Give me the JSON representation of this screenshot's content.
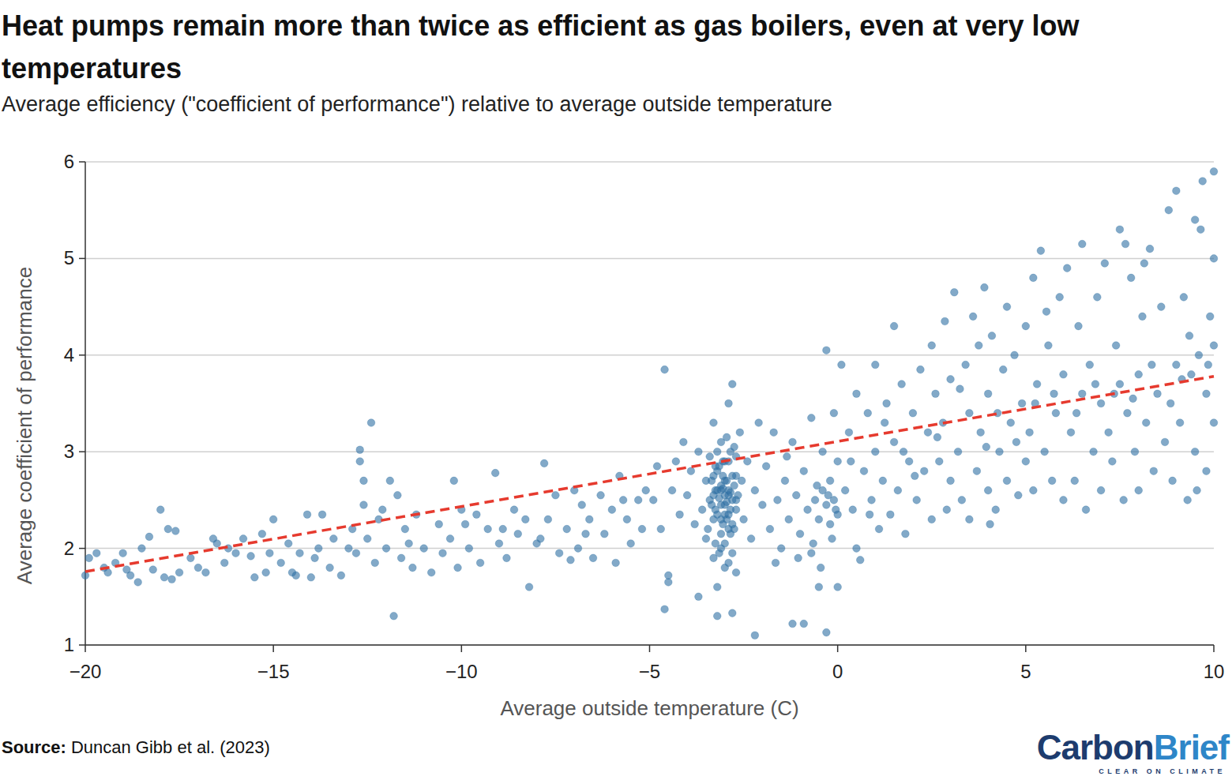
{
  "chart_data": {
    "type": "scatter",
    "title": "Heat pumps remain more than twice as efficient as gas boilers, even at very low temperatures",
    "subtitle": "Average efficiency (\"coefficient of performance\") relative to average outside temperature",
    "x_label": "Average outside temperature (C)",
    "y_label": "Average coefficient of performance",
    "source_label": "Source:",
    "source": "Duncan Gibb et al. (2023)",
    "brand": [
      "Carbon",
      "Brief"
    ],
    "tagline": "CLEAR ON CLIMATE",
    "xlim": [
      -20,
      10
    ],
    "xticks": [
      {
        "value": -20,
        "label": "−20"
      },
      {
        "value": -15,
        "label": "−15"
      },
      {
        "value": -10,
        "label": "−10"
      },
      {
        "value": -5,
        "label": "−5"
      },
      0,
      5,
      10
    ],
    "ylim": [
      1,
      6
    ],
    "yticks": [
      1,
      2,
      3,
      4,
      5,
      6
    ],
    "grid": true,
    "series": [
      {
        "type": "scatter",
        "color": "#2f6fa3",
        "marker": "circle",
        "x": [
          -20,
          -19.9,
          -19.7,
          -19.5,
          -19.2,
          -19,
          -18.8,
          -18.6,
          -18.5,
          -18.3,
          -18.2,
          -18,
          -17.9,
          -17.8,
          -17.6,
          -17.5,
          -17.2,
          -17,
          -16.8,
          -16.6,
          -16.5,
          -16.3,
          -16,
          -15.8,
          -15.5,
          -15.3,
          -15.2,
          -15,
          -15.1,
          -19.4,
          -18.9,
          -17.7,
          -16.2,
          -15.6,
          -14.8,
          -14.6,
          -14.5,
          -14.3,
          -14.1,
          -14,
          -13.8,
          -13.7,
          -13.5,
          -13.4,
          -13.2,
          -13,
          -12.9,
          -12.7,
          -12.7,
          -12.6,
          -12.6,
          -12.5,
          -12.4,
          -12.3,
          -12.2,
          -12,
          -11.9,
          -11.8,
          -11.7,
          -11.6,
          -11.5,
          -11.3,
          -11.2,
          -11,
          -10.8,
          -10.6,
          -10.5,
          -10.3,
          -10.2,
          -10.1,
          -10,
          -12.8,
          -13.9,
          -14.4,
          -11.4,
          -12.1,
          -9.8,
          -9.6,
          -9.5,
          -9.3,
          -9.1,
          -9,
          -8.8,
          -8.6,
          -8.5,
          -8.3,
          -8.2,
          -8,
          -7.8,
          -7.7,
          -7.5,
          -7.4,
          -7.2,
          -7,
          -6.9,
          -6.8,
          -6.6,
          -6.5,
          -6.3,
          -6.2,
          -6,
          -5.9,
          -5.8,
          -5.6,
          -5.5,
          -5.3,
          -5.2,
          -5.1,
          -9.9,
          -8.9,
          -7.9,
          -6.7,
          -5.7,
          -7.1,
          -4.9,
          -4.8,
          -4.7,
          -4.6,
          -4.6,
          -4.5,
          -4.5,
          -4.4,
          -4.3,
          -4.2,
          -4.1,
          -4,
          -3.9,
          -3.8,
          -3.7,
          -3.7,
          -3.6,
          -3.5,
          -3.5,
          -3.4,
          -3.4,
          -3.3,
          -3.3,
          -3.3,
          -3.2,
          -3.2,
          -3.2,
          -3.2,
          -3.1,
          -3.1,
          -3.1,
          -3.0,
          -3.0,
          -3.0,
          -3.0,
          -2.9,
          -2.9,
          -2.9,
          -2.9,
          -2.8,
          -2.8,
          -2.8,
          -2.8,
          -2.7,
          -2.7,
          -2.7,
          -2.6,
          -2.5,
          -2.4,
          -2.3,
          -2.2,
          -2.2,
          -2.1,
          -2.0,
          -3.15,
          -3.05,
          -2.95,
          -2.85,
          -3.25,
          -3.35,
          -2.75,
          -3.05,
          -2.95,
          -3.1,
          -2.85,
          -3.25,
          -2.65,
          -3.45,
          -2.55,
          -3.3,
          -3.2,
          -3.1,
          -3.0,
          -2.9,
          -2.8,
          -2.7,
          -3.25,
          -3.15,
          -3.05,
          -2.95,
          -2.85,
          -2.75,
          -3.2,
          -3.0,
          -2.8,
          -3.1,
          -2.9,
          -3.3,
          -2.7,
          -3.15,
          -2.95,
          -3.05,
          -2.85,
          -3.25,
          -2.75,
          -3.35,
          -3.0,
          -2.9,
          -3.1,
          -1.9,
          -1.8,
          -1.7,
          -1.6,
          -1.5,
          -1.4,
          -1.3,
          -1.2,
          -1.2,
          -1.1,
          -1.0,
          -0.9,
          -0.9,
          -0.8,
          -0.7,
          -0.7,
          -0.6,
          -0.5,
          -0.5,
          -0.4,
          -0.4,
          -0.3,
          -0.3,
          -0.3,
          -0.2,
          -0.2,
          -0.1,
          -0.1,
          0,
          0,
          0,
          -1.65,
          -1.05,
          -0.65,
          -0.15,
          -0.45,
          -1.35,
          -0.25,
          -0.05,
          -0.55,
          0.2,
          0.3,
          0.4,
          0.5,
          0.5,
          0.6,
          0.7,
          0.8,
          0.9,
          1.0,
          1.0,
          1.1,
          1.2,
          1.3,
          1.4,
          1.5,
          1.5,
          1.6,
          1.7,
          1.8,
          1.9,
          2.0,
          2.1,
          2.2,
          2.3,
          2.4,
          2.5,
          2.5,
          2.6,
          2.7,
          2.8,
          2.9,
          3.0,
          3.0,
          0.1,
          0.35,
          1.25,
          2.05,
          2.65,
          1.75,
          0.85,
          2.85,
          3.1,
          3.2,
          3.3,
          3.4,
          3.5,
          3.5,
          3.6,
          3.7,
          3.8,
          3.9,
          4.0,
          4.0,
          4.1,
          4.2,
          4.3,
          4.4,
          4.5,
          4.5,
          4.6,
          4.7,
          4.8,
          4.9,
          5.0,
          5.0,
          5.1,
          5.2,
          5.2,
          5.3,
          5.4,
          5.5,
          5.6,
          5.7,
          5.8,
          5.9,
          6.0,
          6.0,
          3.25,
          3.75,
          4.25,
          4.75,
          5.25,
          5.75,
          5.55,
          4.05,
          3.95,
          6.1,
          6.2,
          6.3,
          6.4,
          6.5,
          6.5,
          6.6,
          6.7,
          6.8,
          6.9,
          7.0,
          7.0,
          7.1,
          7.2,
          7.3,
          7.4,
          7.5,
          7.5,
          7.6,
          7.7,
          7.8,
          7.9,
          8.0,
          8.0,
          8.1,
          8.2,
          8.3,
          8.4,
          8.5,
          8.6,
          8.7,
          8.8,
          8.9,
          9.0,
          9.0,
          9.1,
          9.2,
          9.3,
          9.4,
          9.5,
          9.5,
          9.6,
          9.7,
          9.8,
          9.8,
          9.9,
          10.0,
          10.0,
          10.0,
          10.0,
          6.35,
          6.85,
          7.35,
          7.85,
          8.35,
          8.85,
          9.35,
          9.85,
          9.65,
          8.15,
          7.65,
          9.15,
          9.55
        ],
        "values": [
          1.72,
          1.9,
          1.95,
          1.8,
          1.85,
          1.95,
          1.72,
          1.65,
          2.0,
          2.12,
          1.78,
          2.4,
          1.7,
          2.2,
          2.18,
          1.75,
          1.9,
          1.8,
          1.75,
          2.1,
          2.05,
          1.85,
          1.95,
          2.1,
          1.7,
          2.15,
          1.75,
          2.3,
          1.95,
          1.75,
          1.78,
          1.68,
          2.0,
          1.92,
          1.85,
          2.05,
          1.75,
          1.95,
          2.35,
          1.7,
          2.0,
          2.35,
          1.8,
          2.1,
          1.72,
          2.0,
          2.2,
          3.02,
          2.9,
          2.7,
          2.45,
          2.1,
          3.3,
          1.85,
          2.3,
          2.0,
          2.7,
          1.3,
          2.55,
          1.9,
          2.2,
          1.8,
          2.35,
          2.0,
          1.75,
          2.25,
          1.95,
          2.1,
          2.7,
          1.8,
          2.4,
          1.95,
          1.9,
          1.72,
          2.05,
          2.4,
          2.0,
          2.35,
          1.85,
          2.2,
          2.78,
          2.05,
          1.9,
          2.4,
          2.15,
          2.3,
          1.6,
          2.05,
          2.88,
          2.3,
          2.55,
          1.95,
          2.2,
          2.6,
          2.0,
          2.45,
          2.3,
          1.9,
          2.55,
          2.15,
          2.4,
          1.85,
          2.75,
          2.3,
          2.05,
          2.5,
          2.2,
          2.6,
          2.25,
          2.2,
          2.1,
          2.15,
          2.5,
          1.88,
          2.5,
          2.85,
          2.2,
          3.85,
          1.37,
          1.72,
          1.65,
          2.6,
          2.9,
          2.35,
          3.1,
          2.55,
          2.8,
          2.25,
          1.5,
          3.0,
          2.4,
          2.7,
          2.1,
          2.95,
          2.5,
          3.3,
          2.3,
          1.9,
          2.6,
          2.8,
          1.6,
          1.3,
          2.45,
          3.1,
          2.0,
          2.55,
          2.7,
          2.35,
          1.8,
          3.5,
          2.6,
          2.2,
          2.9,
          3.7,
          1.33,
          2.5,
          1.95,
          2.75,
          2.4,
          1.75,
          3.2,
          2.3,
          2.9,
          2.1,
          1.1,
          2.6,
          3.3,
          2.45,
          2.52,
          2.62,
          2.48,
          2.58,
          2.4,
          2.7,
          2.65,
          2.9,
          2.3,
          2.15,
          3.0,
          2.05,
          2.55,
          2.2,
          2.7,
          2.75,
          2.35,
          2.65,
          2.45,
          2.55,
          2.25,
          2.95,
          2.6,
          2.85,
          2.25,
          2.7,
          2.4,
          2.2,
          3.0,
          2.9,
          2.75,
          2.3,
          2.35,
          2.55,
          2.5,
          1.95,
          3.15,
          2.75,
          2.15,
          2.85,
          3.05,
          2.45,
          2.05,
          1.85,
          2.6,
          2.85,
          2.2,
          3.2,
          2.5,
          2.0,
          2.7,
          2.3,
          1.22,
          3.1,
          2.55,
          2.15,
          1.22,
          2.8,
          2.4,
          3.35,
          1.95,
          2.5,
          1.6,
          2.3,
          2.6,
          3.0,
          1.13,
          4.05,
          2.45,
          2.25,
          2.7,
          2.5,
          3.4,
          1.6,
          2.35,
          2.9,
          1.85,
          1.9,
          2.05,
          2.1,
          1.8,
          2.95,
          2.55,
          2.4,
          2.65,
          2.6,
          3.2,
          2.4,
          3.6,
          2.0,
          1.88,
          2.8,
          3.4,
          2.5,
          3.0,
          3.9,
          2.2,
          2.7,
          3.5,
          2.35,
          4.3,
          3.1,
          2.6,
          3.7,
          2.15,
          2.9,
          3.4,
          2.5,
          3.85,
          2.8,
          3.2,
          4.1,
          2.3,
          3.6,
          2.9,
          3.3,
          2.4,
          3.75,
          2.7,
          3.9,
          2.9,
          3.3,
          2.75,
          3.15,
          3.0,
          2.35,
          4.35,
          4.65,
          3.0,
          2.5,
          3.9,
          2.3,
          3.4,
          4.4,
          2.8,
          3.2,
          4.7,
          2.6,
          3.6,
          4.2,
          2.4,
          3.0,
          3.85,
          4.5,
          2.7,
          3.3,
          4.0,
          2.55,
          3.5,
          4.3,
          2.9,
          3.2,
          4.8,
          2.6,
          3.7,
          5.08,
          3.0,
          4.1,
          2.7,
          3.4,
          4.6,
          2.5,
          3.8,
          3.65,
          4.1,
          3.4,
          3.1,
          3.5,
          3.6,
          4.45,
          2.25,
          3.05,
          4.9,
          3.2,
          2.7,
          4.3,
          5.15,
          3.6,
          2.4,
          3.9,
          3.0,
          4.6,
          2.6,
          3.5,
          4.95,
          3.2,
          2.9,
          4.1,
          3.7,
          5.3,
          2.5,
          3.4,
          4.8,
          3.0,
          3.8,
          2.6,
          4.4,
          3.3,
          5.1,
          2.8,
          3.6,
          4.5,
          3.1,
          5.5,
          2.7,
          3.9,
          5.7,
          3.3,
          4.6,
          2.5,
          3.8,
          5.4,
          3.0,
          4.0,
          5.8,
          2.8,
          3.6,
          4.4,
          5.9,
          3.3,
          4.1,
          5.0,
          3.4,
          3.7,
          3.6,
          3.55,
          3.9,
          3.5,
          4.2,
          3.9,
          5.3,
          4.95,
          5.15,
          3.75,
          2.6
        ]
      },
      {
        "type": "line",
        "color": "#e63a2e",
        "line_style": "dashed",
        "x": [
          -20,
          10
        ],
        "values": [
          1.76,
          3.78
        ]
      }
    ]
  }
}
